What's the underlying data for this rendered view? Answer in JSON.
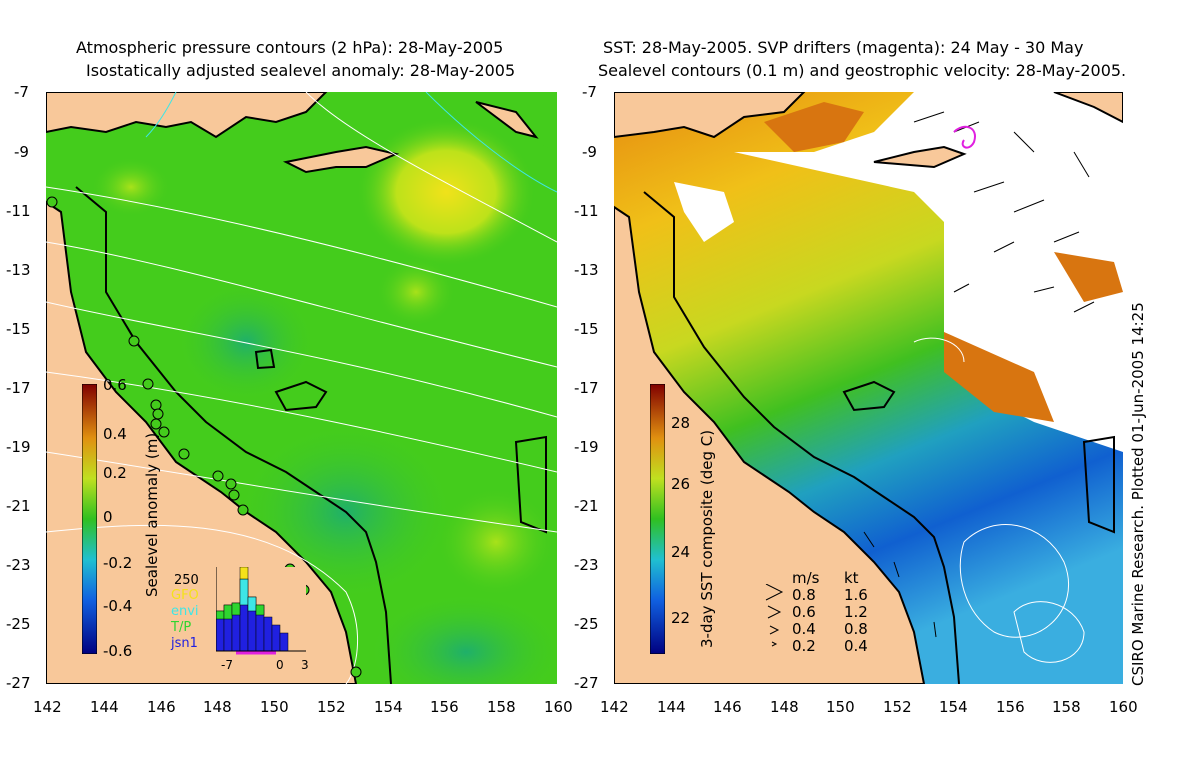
{
  "left": {
    "title1": "Atmospheric pressure contours (2 hPa): 28-May-2005",
    "title2": "Isostatically adjusted sealevel anomaly: 28-May-2005",
    "colorbar_label": "Sealevel anomaly (m)",
    "colorbar_ticks": [
      "0.6",
      "0.4",
      "0.2",
      "0",
      "-0.2",
      "-0.4",
      "-0.6"
    ],
    "histogram": {
      "ymax_label": "250",
      "x_ticks": [
        "-7",
        "0",
        "3"
      ],
      "legend": [
        {
          "label": "GFO",
          "color": "#f4e21a"
        },
        {
          "label": "envi",
          "color": "#3ee6e6"
        },
        {
          "label": "T/P",
          "color": "#2fd52f"
        },
        {
          "label": "jsn1",
          "color": "#2020e0"
        }
      ]
    }
  },
  "right": {
    "title1": "SST: 28-May-2005. SVP drifters (magenta): 24 May - 30 May",
    "title2": "Sealevel contours (0.1 m) and geostrophic velocity: 28-May-2005.",
    "colorbar_label": "3-day SST composite (deg C)",
    "colorbar_ticks": [
      "28",
      "26",
      "24",
      "22"
    ],
    "velocity_legend": {
      "header_ms": "m/s",
      "header_kt": "kt",
      "rows": [
        {
          "ms": "0.8",
          "kt": "1.6"
        },
        {
          "ms": "0.6",
          "kt": "1.2"
        },
        {
          "ms": "0.4",
          "kt": "0.8"
        },
        {
          "ms": "0.2",
          "kt": "0.4"
        }
      ]
    },
    "credit": "CSIRO Marine Research. Plotted 01-Jun-2005 14:25"
  },
  "axes": {
    "lat_ticks": [
      "-7",
      "-9",
      "-11",
      "-13",
      "-15",
      "-17",
      "-19",
      "-21",
      "-23",
      "-25",
      "-27"
    ],
    "lon_ticks": [
      "142",
      "144",
      "146",
      "148",
      "150",
      "152",
      "154",
      "156",
      "158",
      "160"
    ]
  },
  "colors": {
    "land": "#f8c89a",
    "ocean_green": "#44cc1c",
    "no_data": "#ffffff"
  }
}
